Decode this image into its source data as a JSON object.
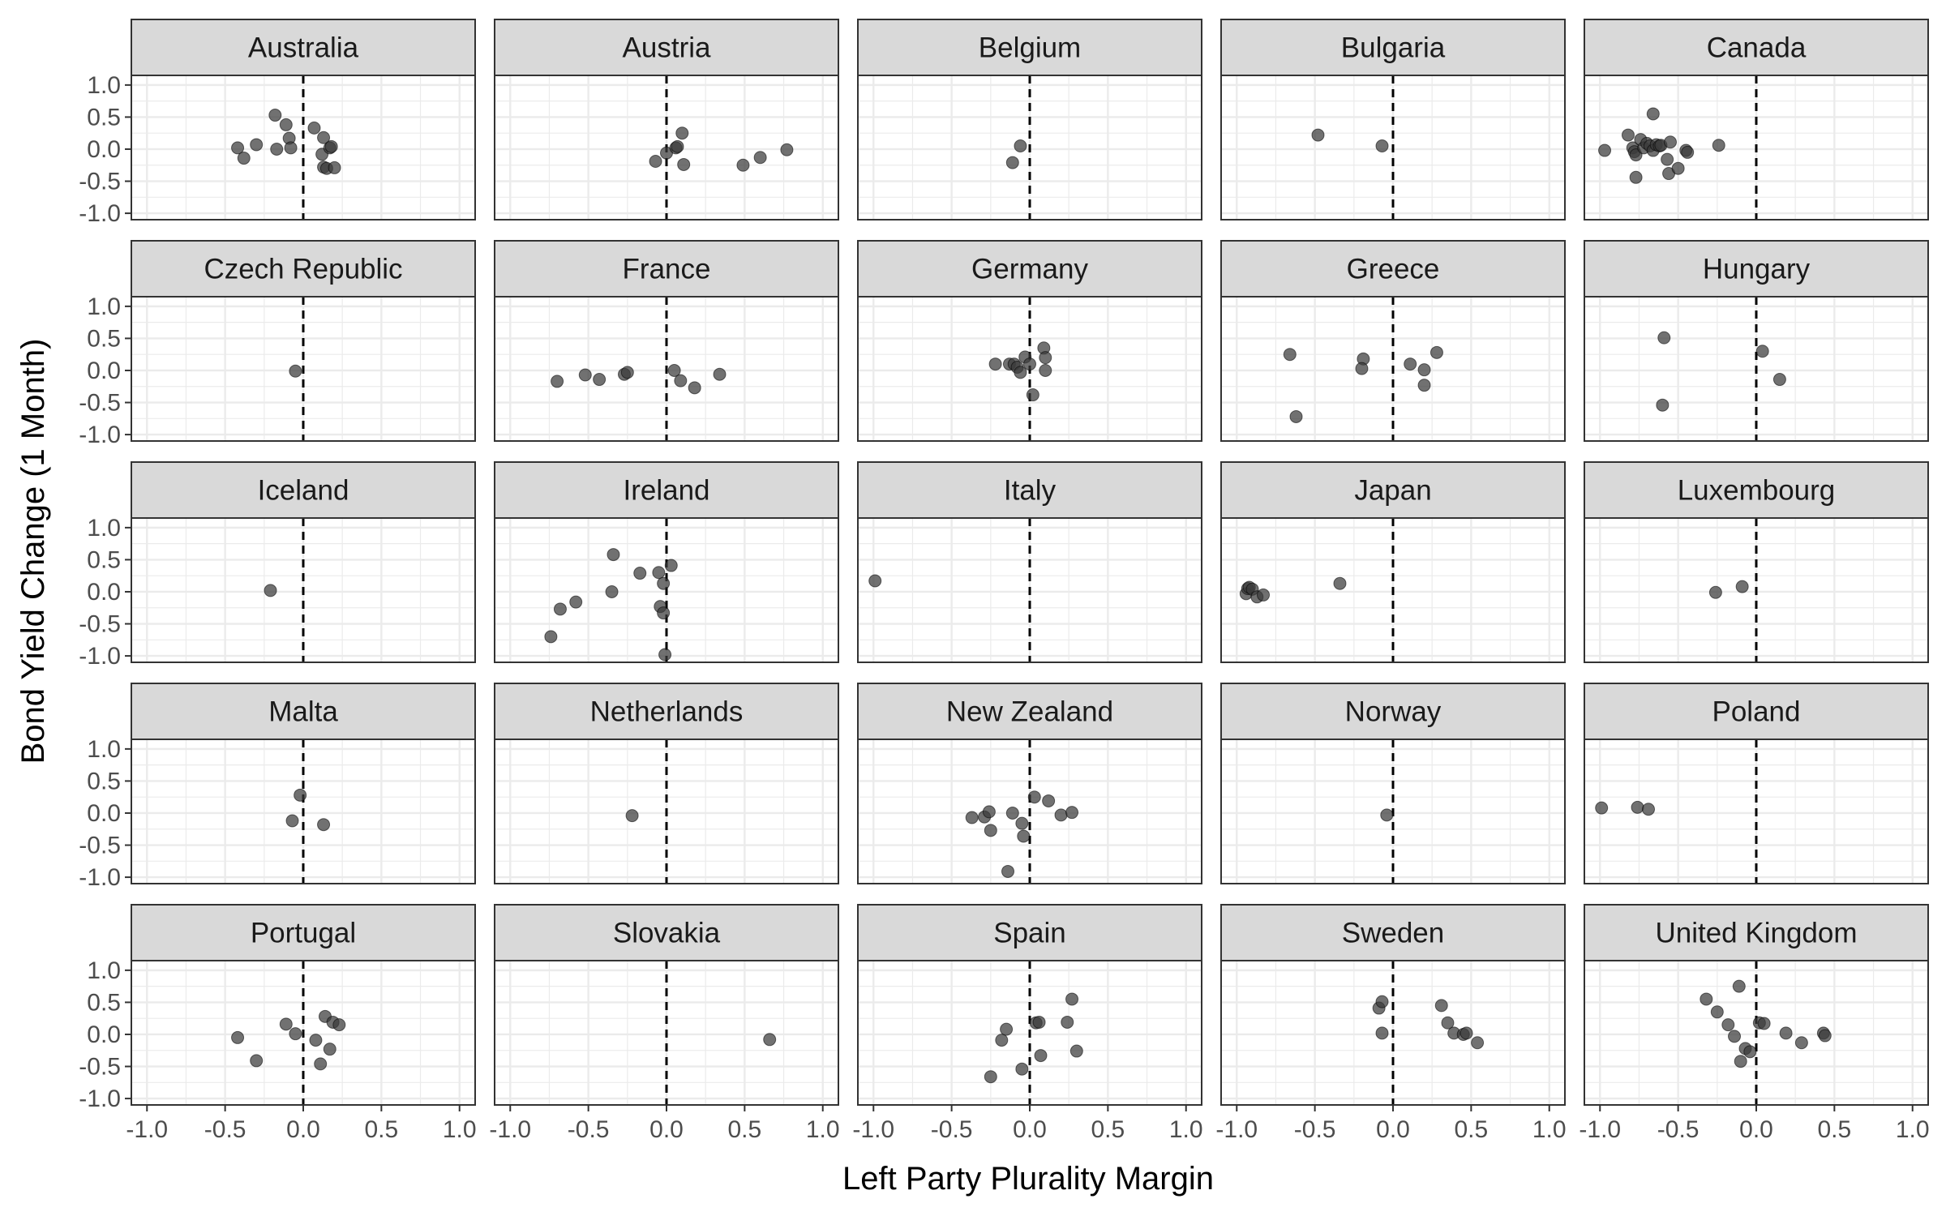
{
  "chart_data": {
    "type": "scatter",
    "facet": "wrap",
    "xlabel": "Left Party Plurality Margin",
    "ylabel": "Bond Yield Change (1 Month)",
    "xlim": [
      -1.1,
      1.1
    ],
    "ylim": [
      -1.1,
      1.15
    ],
    "x_ticks": [
      "-1.0",
      "-0.5",
      "0.0",
      "0.5",
      "1.0"
    ],
    "y_ticks": [
      "1.0",
      "0.5",
      "0.0",
      "-0.5",
      "-1.0"
    ],
    "x_tick_values": [
      -1,
      -0.5,
      0,
      0.5,
      1
    ],
    "y_tick_values": [
      1,
      0.5,
      0,
      -0.5,
      -1
    ],
    "reference_line": {
      "x": 0,
      "style": "dashed"
    },
    "grid": true,
    "colors": {
      "point": "#3a3a3a",
      "strip": "#d9d9d9",
      "panel_border": "#333333",
      "grid": "#ebebeb",
      "axis_text": "#4d4d4d",
      "ref_line": "#000000"
    },
    "panels": [
      {
        "name": "Australia",
        "points": [
          [
            -0.42,
            0.02
          ],
          [
            -0.38,
            -0.14
          ],
          [
            -0.3,
            0.07
          ],
          [
            -0.18,
            0.53
          ],
          [
            -0.17,
            0.0
          ],
          [
            -0.11,
            0.38
          ],
          [
            -0.09,
            0.17
          ],
          [
            -0.08,
            0.02
          ],
          [
            0.07,
            0.33
          ],
          [
            0.12,
            -0.08
          ],
          [
            0.13,
            -0.28
          ],
          [
            0.13,
            0.18
          ],
          [
            0.15,
            -0.3
          ],
          [
            0.17,
            0.02
          ],
          [
            0.18,
            0.04
          ],
          [
            0.2,
            -0.29
          ]
        ]
      },
      {
        "name": "Austria",
        "points": [
          [
            -0.07,
            -0.19
          ],
          [
            0.0,
            -0.06
          ],
          [
            0.06,
            0.02
          ],
          [
            0.07,
            0.04
          ],
          [
            0.1,
            0.25
          ],
          [
            0.11,
            -0.24
          ],
          [
            0.49,
            -0.25
          ],
          [
            0.6,
            -0.13
          ],
          [
            0.77,
            -0.01
          ]
        ]
      },
      {
        "name": "Belgium",
        "points": [
          [
            -0.06,
            0.05
          ],
          [
            -0.11,
            -0.21
          ]
        ]
      },
      {
        "name": "Bulgaria",
        "points": [
          [
            -0.48,
            0.22
          ],
          [
            -0.07,
            0.05
          ]
        ]
      },
      {
        "name": "Canada",
        "points": [
          [
            -0.97,
            -0.02
          ],
          [
            -0.82,
            0.22
          ],
          [
            -0.79,
            0.02
          ],
          [
            -0.78,
            -0.04
          ],
          [
            -0.77,
            -0.09
          ],
          [
            -0.77,
            -0.44
          ],
          [
            -0.74,
            0.15
          ],
          [
            -0.72,
            0.02
          ],
          [
            -0.7,
            0.09
          ],
          [
            -0.68,
            0.05
          ],
          [
            -0.66,
            0.55
          ],
          [
            -0.66,
            -0.02
          ],
          [
            -0.64,
            0.07
          ],
          [
            -0.62,
            0.05
          ],
          [
            -0.61,
            0.06
          ],
          [
            -0.57,
            -0.16
          ],
          [
            -0.56,
            -0.38
          ],
          [
            -0.55,
            0.11
          ],
          [
            -0.5,
            -0.3
          ],
          [
            -0.45,
            -0.02
          ],
          [
            -0.44,
            -0.05
          ],
          [
            -0.24,
            0.06
          ]
        ]
      },
      {
        "name": "Czech Republic",
        "points": [
          [
            -0.05,
            -0.01
          ]
        ]
      },
      {
        "name": "France",
        "points": [
          [
            -0.7,
            -0.17
          ],
          [
            -0.52,
            -0.07
          ],
          [
            -0.43,
            -0.14
          ],
          [
            -0.27,
            -0.06
          ],
          [
            -0.25,
            -0.03
          ],
          [
            0.05,
            0.0
          ],
          [
            0.09,
            -0.16
          ],
          [
            0.18,
            -0.27
          ],
          [
            0.34,
            -0.06
          ]
        ]
      },
      {
        "name": "Germany",
        "points": [
          [
            -0.22,
            0.1
          ],
          [
            -0.13,
            0.1
          ],
          [
            -0.1,
            0.1
          ],
          [
            -0.08,
            0.05
          ],
          [
            -0.06,
            -0.03
          ],
          [
            -0.03,
            0.21
          ],
          [
            0.0,
            0.1
          ],
          [
            0.02,
            -0.38
          ],
          [
            0.09,
            0.35
          ],
          [
            0.1,
            0.2
          ],
          [
            0.1,
            0.0
          ]
        ]
      },
      {
        "name": "Greece",
        "points": [
          [
            -0.66,
            0.25
          ],
          [
            -0.62,
            -0.72
          ],
          [
            -0.19,
            0.18
          ],
          [
            -0.2,
            0.03
          ],
          [
            0.11,
            0.1
          ],
          [
            0.2,
            -0.23
          ],
          [
            0.2,
            0.01
          ],
          [
            0.28,
            0.28
          ]
        ]
      },
      {
        "name": "Hungary",
        "points": [
          [
            -0.59,
            0.51
          ],
          [
            -0.6,
            -0.54
          ],
          [
            0.04,
            0.3
          ],
          [
            0.15,
            -0.14
          ]
        ]
      },
      {
        "name": "Iceland",
        "points": [
          [
            -0.21,
            0.02
          ]
        ]
      },
      {
        "name": "Ireland",
        "points": [
          [
            -0.74,
            -0.7
          ],
          [
            -0.68,
            -0.27
          ],
          [
            -0.58,
            -0.16
          ],
          [
            -0.34,
            0.58
          ],
          [
            -0.35,
            0.0
          ],
          [
            -0.17,
            0.29
          ],
          [
            -0.05,
            0.3
          ],
          [
            -0.04,
            -0.23
          ],
          [
            -0.02,
            -0.33
          ],
          [
            -0.02,
            0.13
          ],
          [
            -0.01,
            -0.98
          ],
          [
            0.03,
            0.41
          ]
        ]
      },
      {
        "name": "Italy",
        "points": [
          [
            -0.99,
            0.17
          ]
        ]
      },
      {
        "name": "Japan",
        "points": [
          [
            -0.94,
            -0.03
          ],
          [
            -0.93,
            0.05
          ],
          [
            -0.92,
            0.07
          ],
          [
            -0.9,
            0.04
          ],
          [
            -0.87,
            -0.08
          ],
          [
            -0.83,
            -0.05
          ],
          [
            -0.34,
            0.13
          ]
        ]
      },
      {
        "name": "Luxembourg",
        "points": [
          [
            -0.26,
            -0.01
          ],
          [
            -0.09,
            0.08
          ]
        ]
      },
      {
        "name": "Malta",
        "points": [
          [
            -0.02,
            0.28
          ],
          [
            -0.07,
            -0.12
          ],
          [
            0.13,
            -0.18
          ]
        ]
      },
      {
        "name": "Netherlands",
        "points": [
          [
            -0.22,
            -0.04
          ]
        ]
      },
      {
        "name": "New Zealand",
        "points": [
          [
            -0.37,
            -0.07
          ],
          [
            -0.29,
            -0.06
          ],
          [
            -0.26,
            0.02
          ],
          [
            -0.25,
            -0.27
          ],
          [
            -0.11,
            0.0
          ],
          [
            -0.05,
            -0.16
          ],
          [
            -0.04,
            -0.36
          ],
          [
            -0.14,
            -0.91
          ],
          [
            0.03,
            0.25
          ],
          [
            0.12,
            0.19
          ],
          [
            0.2,
            -0.03
          ],
          [
            0.27,
            0.01
          ]
        ]
      },
      {
        "name": "Norway",
        "points": [
          [
            -0.04,
            -0.03
          ]
        ]
      },
      {
        "name": "Poland",
        "points": [
          [
            -0.99,
            0.08
          ],
          [
            -0.76,
            0.09
          ],
          [
            -0.69,
            0.06
          ]
        ]
      },
      {
        "name": "Portugal",
        "points": [
          [
            -0.42,
            -0.05
          ],
          [
            -0.3,
            -0.41
          ],
          [
            -0.11,
            0.16
          ],
          [
            -0.05,
            0.01
          ],
          [
            0.08,
            -0.09
          ],
          [
            0.11,
            -0.46
          ],
          [
            0.14,
            0.28
          ],
          [
            0.17,
            -0.23
          ],
          [
            0.19,
            0.19
          ],
          [
            0.23,
            0.15
          ]
        ]
      },
      {
        "name": "Slovakia",
        "points": [
          [
            0.66,
            -0.08
          ]
        ]
      },
      {
        "name": "Spain",
        "points": [
          [
            -0.25,
            -0.66
          ],
          [
            -0.18,
            -0.09
          ],
          [
            -0.15,
            0.08
          ],
          [
            -0.05,
            -0.54
          ],
          [
            0.04,
            0.18
          ],
          [
            0.06,
            0.19
          ],
          [
            0.07,
            -0.33
          ],
          [
            0.24,
            0.19
          ],
          [
            0.27,
            0.55
          ],
          [
            0.3,
            -0.26
          ]
        ]
      },
      {
        "name": "Sweden",
        "points": [
          [
            -0.09,
            0.41
          ],
          [
            -0.07,
            0.51
          ],
          [
            -0.07,
            0.02
          ],
          [
            0.31,
            0.45
          ],
          [
            0.35,
            0.18
          ],
          [
            0.39,
            0.02
          ],
          [
            0.45,
            0.0
          ],
          [
            0.47,
            0.02
          ],
          [
            0.54,
            -0.13
          ]
        ]
      },
      {
        "name": "United Kingdom",
        "points": [
          [
            -0.32,
            0.55
          ],
          [
            -0.25,
            0.35
          ],
          [
            -0.18,
            0.15
          ],
          [
            -0.14,
            -0.03
          ],
          [
            -0.11,
            0.75
          ],
          [
            -0.1,
            -0.42
          ],
          [
            -0.07,
            -0.22
          ],
          [
            -0.04,
            -0.27
          ],
          [
            0.02,
            0.18
          ],
          [
            0.05,
            0.17
          ],
          [
            0.19,
            0.02
          ],
          [
            0.29,
            -0.13
          ],
          [
            0.43,
            0.02
          ],
          [
            0.44,
            -0.02
          ]
        ]
      }
    ]
  }
}
